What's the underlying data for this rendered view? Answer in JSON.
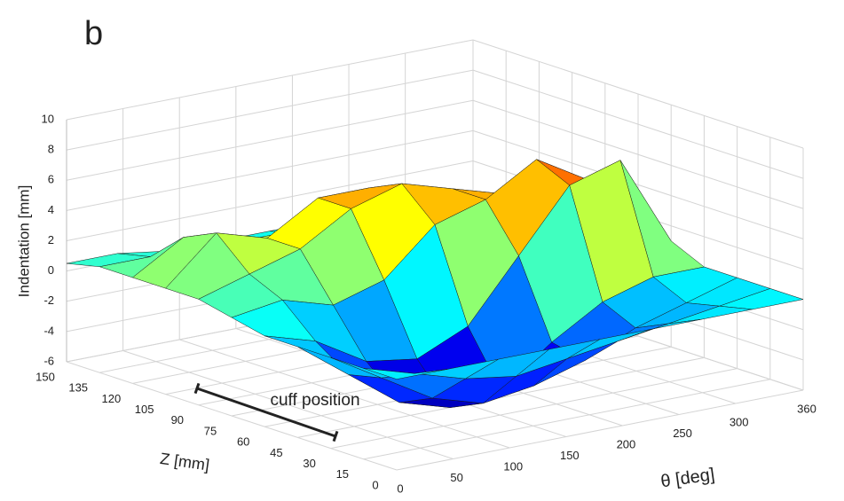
{
  "chart_data": {
    "type": "surface3d",
    "panel_label": "b",
    "xlabel": "θ [deg]",
    "ylabel": "Z [mm]",
    "zlabel": "Indentation [mm]",
    "annotation": "cuff position",
    "colormap": "jet",
    "grid": true,
    "xlim": [
      0,
      360
    ],
    "ylim": [
      0,
      150
    ],
    "zlim": [
      -6,
      10
    ],
    "xticks": [
      0,
      50,
      100,
      150,
      200,
      250,
      300,
      360
    ],
    "yticks": [
      0,
      15,
      30,
      45,
      60,
      75,
      90,
      105,
      120,
      135,
      150
    ],
    "zticks": [
      -6,
      -4,
      -2,
      0,
      2,
      4,
      6,
      8,
      10
    ],
    "x": [
      0,
      45,
      90,
      135,
      180,
      225,
      270,
      315,
      360
    ],
    "y": [
      0,
      15,
      30,
      45,
      60,
      75,
      90,
      105,
      120,
      135,
      150
    ],
    "values": [
      [
        0,
        0,
        0,
        0,
        0,
        0,
        0,
        0,
        0
      ],
      [
        0,
        -1,
        -2,
        -2.5,
        -2,
        -1.5,
        -1,
        -0.5,
        0
      ],
      [
        0,
        -2,
        -4,
        -5,
        -4.5,
        -3.5,
        -2,
        -1,
        0
      ],
      [
        0,
        -2.5,
        -5,
        -6,
        -5.5,
        -3,
        -1,
        0,
        0
      ],
      [
        0,
        -1,
        -3,
        -3.5,
        -2,
        2,
        6,
        7,
        1
      ],
      [
        0.5,
        1,
        0,
        1,
        4,
        5,
        7,
        5,
        0.5
      ],
      [
        1,
        2,
        3,
        5,
        6,
        5,
        4,
        2,
        0
      ],
      [
        1,
        4,
        3,
        5,
        5,
        3,
        2,
        1,
        0
      ],
      [
        1,
        3,
        2,
        2,
        2,
        1,
        1,
        0,
        0
      ],
      [
        1,
        1,
        1,
        0.5,
        0.5,
        0,
        0,
        0,
        0
      ],
      [
        0.5,
        0.5,
        0,
        0,
        0,
        0,
        0,
        0,
        0
      ]
    ]
  }
}
